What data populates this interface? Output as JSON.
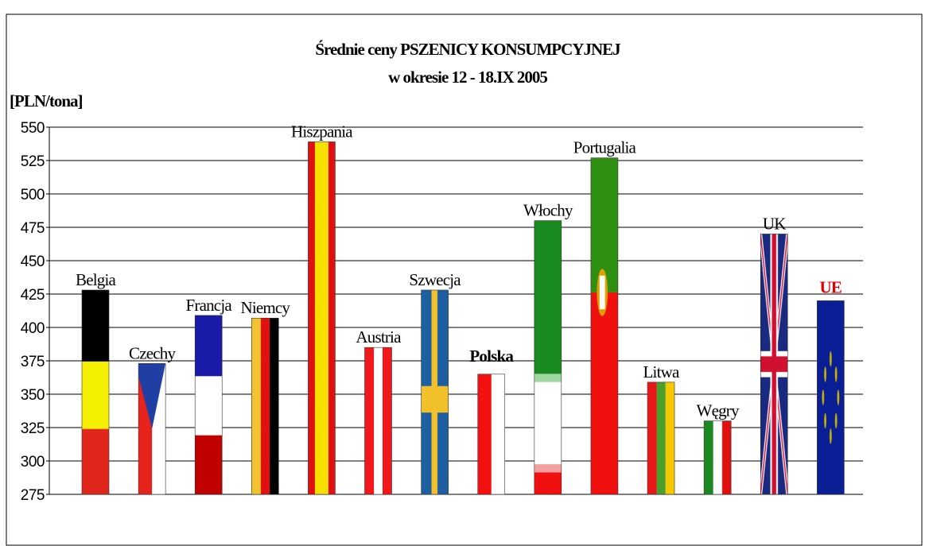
{
  "chart_data": {
    "type": "bar",
    "title": "Średnie ceny PSZENICY KONSUMPCYJNEJ",
    "subtitle": "w okresie 12 - 18.IX 2005",
    "y_label": "[PLN/tona]",
    "categories": [
      "Belgia",
      "Czechy",
      "Francja",
      "Niemcy",
      "Hiszpania",
      "Austria",
      "Szwecja",
      "Polska",
      "Włochy",
      "Portugalia",
      "Litwa",
      "Węgry",
      "UK",
      "UE"
    ],
    "values": [
      428,
      373,
      409,
      407,
      539,
      385,
      428,
      365,
      480,
      527,
      359,
      330,
      470,
      420
    ],
    "ylim": [
      275,
      550
    ],
    "yticks": [
      275,
      300,
      325,
      350,
      375,
      400,
      425,
      450,
      475,
      500,
      525,
      550
    ],
    "grid": true
  }
}
